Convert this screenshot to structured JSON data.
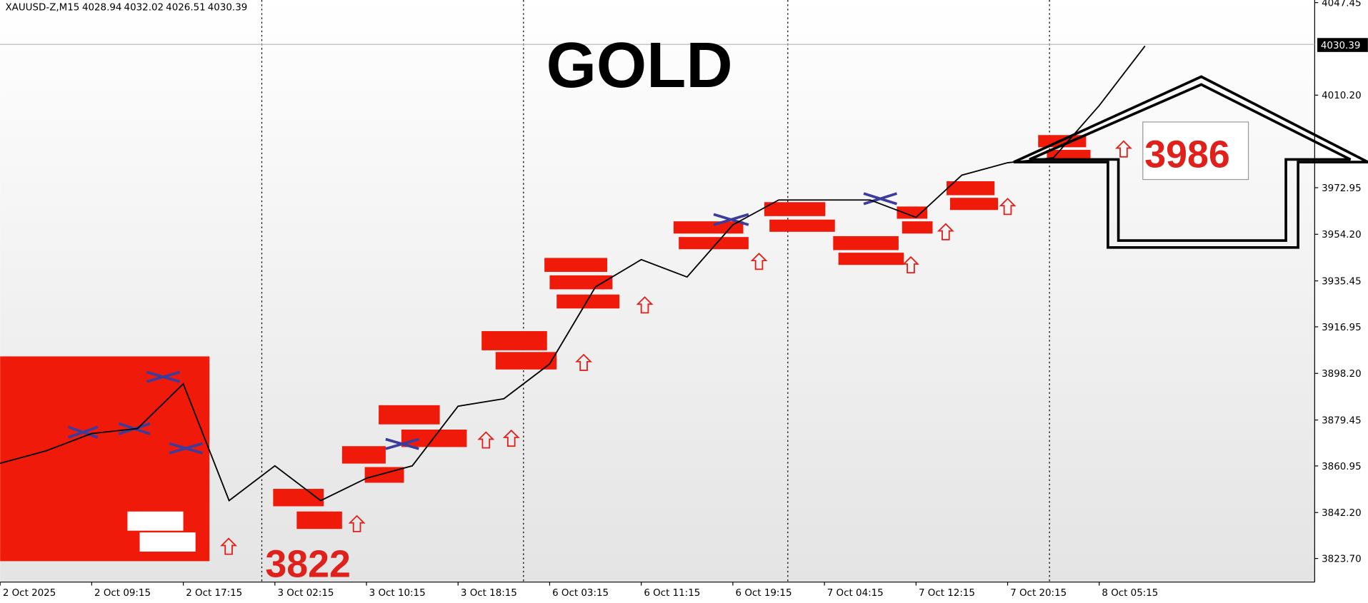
{
  "chart_data": {
    "type": "line",
    "symbol": "XAUUSD-Z,M15",
    "ohlc": [
      4028.94,
      4032.02,
      4026.51,
      4030.39
    ],
    "title": "GOLD",
    "annotations": [
      "3822",
      "3986"
    ],
    "last_price": 4030.39,
    "categories": [
      "2 Oct 2025",
      null,
      "2 Oct 09:15",
      null,
      "2 Oct 17:15",
      null,
      "3 Oct 02:15",
      null,
      "3 Oct 10:15",
      null,
      "3 Oct 18:15",
      null,
      "6 Oct 03:15",
      null,
      "6 Oct 11:15",
      null,
      "6 Oct 19:15",
      null,
      "7 Oct 04:15",
      null,
      "7 Oct 12:15",
      null,
      "7 Oct 20:15",
      null,
      "8 Oct 05:15",
      null
    ],
    "series": [
      {
        "color": "#000000",
        "values": [
          3862,
          3867,
          3874,
          3876,
          3894,
          3847,
          3861,
          3847,
          3856,
          3861,
          3885,
          3888,
          3902,
          3933,
          3944,
          3937,
          3958,
          3968,
          3968,
          3968,
          3961,
          3978,
          3983,
          3985,
          4006,
          4030
        ]
      }
    ],
    "ylim": [
      3814.2,
      4048.5
    ],
    "yticks": [
      4047.45,
      {
        "value": 4010.2,
        "label": "4010.20"
      },
      3972.95,
      {
        "value": 3954.2,
        "label": "3954.20"
      },
      3935.45,
      3916.95,
      {
        "value": 3898.2,
        "label": "3898.20"
      },
      3879.45,
      3860.95,
      {
        "value": 3842.2,
        "label": "3842.20"
      },
      {
        "value": 3823.7,
        "label": "3823.70"
      }
    ]
  }
}
